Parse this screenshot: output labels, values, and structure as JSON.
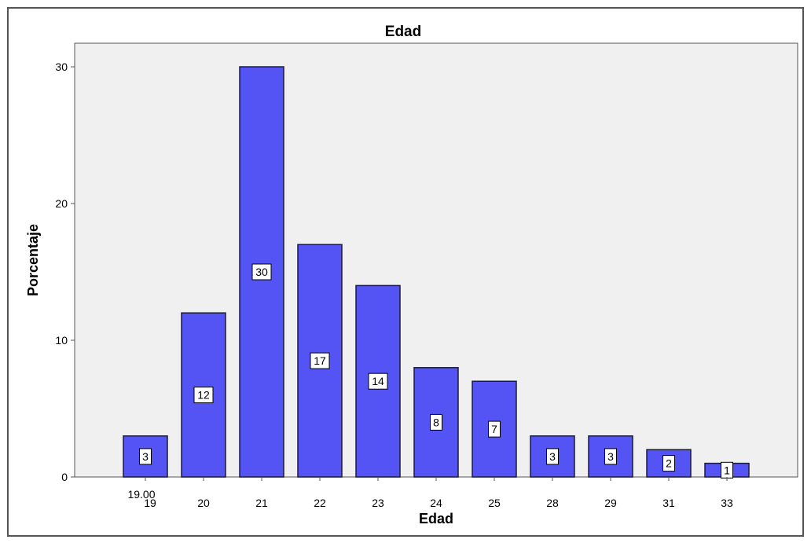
{
  "chart_data": {
    "type": "bar",
    "title": "Edad",
    "xlabel": "Edad",
    "ylabel": "Porcentaje",
    "categories": [
      "19",
      "20",
      "21",
      "22",
      "23",
      "24",
      "25",
      "28",
      "29",
      "31",
      "33"
    ],
    "values": [
      3,
      12,
      30,
      17,
      14,
      8,
      7,
      3,
      3,
      2,
      1
    ],
    "data_labels": [
      "3",
      "12",
      "30",
      "17",
      "14",
      "8",
      "7",
      "3",
      "3",
      "2",
      "1"
    ],
    "yticks": [
      0,
      10,
      20,
      30
    ],
    "ylim": [
      0,
      30
    ],
    "extra_x_annotation": "19.00",
    "grid": false,
    "legend": "none",
    "colors": {
      "bar_fill": "#5454f5",
      "bar_stroke": "#1a1a3a",
      "plot_background": "#f0f0f0",
      "outer_background": "#ffffff",
      "label_box_fill": "#ffffff",
      "text": "#000000"
    }
  }
}
